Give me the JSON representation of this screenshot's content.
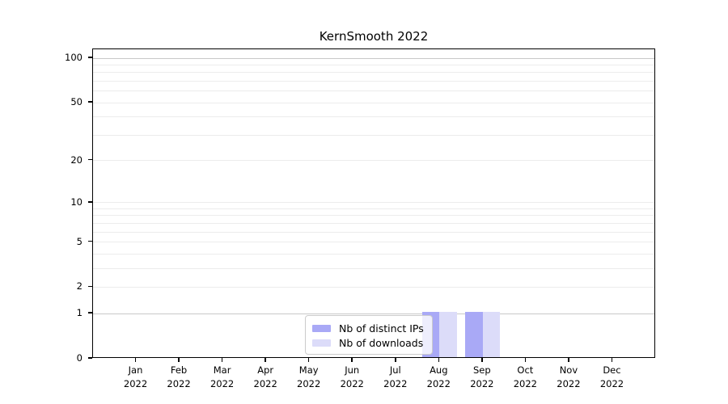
{
  "chart_data": {
    "type": "bar",
    "title": "KernSmooth 2022",
    "categories": [
      "Jan",
      "Feb",
      "Mar",
      "Apr",
      "May",
      "Jun",
      "Jul",
      "Aug",
      "Sep",
      "Oct",
      "Nov",
      "Dec"
    ],
    "tick_year": "2022",
    "series": [
      {
        "name": "Nb of distinct IPs",
        "color": "#a9a9f6",
        "values": [
          0,
          0,
          0,
          0,
          0,
          0,
          0,
          1,
          1,
          0,
          0,
          0
        ]
      },
      {
        "name": "Nb of downloads",
        "color": "#dcdcf9",
        "values": [
          0,
          0,
          0,
          0,
          0,
          0,
          0,
          1,
          1,
          0,
          0,
          0
        ]
      }
    ],
    "xlabel": "",
    "ylabel": "",
    "y_axis": {
      "scale": "log1p",
      "tick_values": [
        0,
        1,
        2,
        5,
        10,
        20,
        50,
        100
      ],
      "ylim": [
        0,
        115
      ],
      "major_grid_values": [
        1,
        100
      ],
      "minor_grid_values": [
        2,
        3,
        4,
        5,
        6,
        7,
        8,
        9,
        10,
        20,
        30,
        40,
        50,
        60,
        70,
        80,
        90
      ]
    },
    "grid": true,
    "legend_position": "bottom-center",
    "colors": {
      "frame": "#000000",
      "text": "#000000",
      "grid_major": "#c8c8c8",
      "grid_minor": "#ececec",
      "legend_bg": "rgba(255,255,255,0.8)",
      "legend_border": "#cccccc"
    }
  }
}
